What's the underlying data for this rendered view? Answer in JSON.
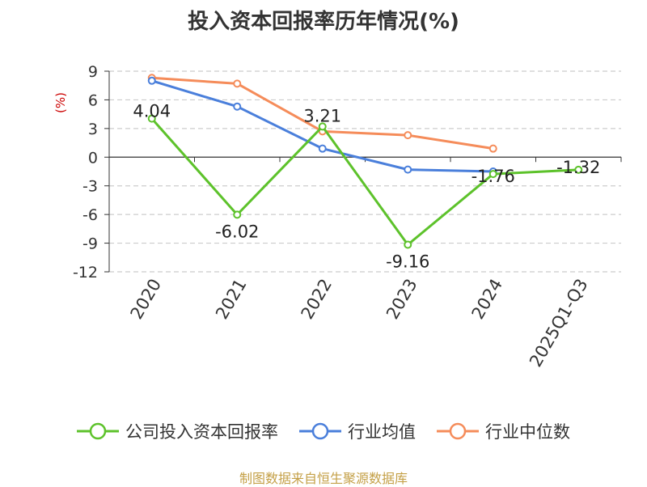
{
  "chart_data": {
    "type": "line",
    "title": "投入资本回报率历年情况(%)",
    "ylabel": "(%)",
    "categories": [
      "2020",
      "2021",
      "2022",
      "2023",
      "2024",
      "2025Q1-Q3"
    ],
    "ylim": [
      -12,
      9
    ],
    "yticks": [
      9,
      6,
      3,
      0,
      -3,
      -6,
      -9,
      -12
    ],
    "grid": true,
    "legend_position": "bottom",
    "series": [
      {
        "name": "公司投入资本回报率",
        "color": "#5dc22b",
        "values": [
          4.04,
          -6.02,
          3.21,
          -9.16,
          -1.76,
          -1.32
        ],
        "labels": [
          "4.04",
          "-6.02",
          "3.21",
          "-9.16",
          "-1.76",
          "-1.32"
        ]
      },
      {
        "name": "行业均值",
        "color": "#4a7fdb",
        "values": [
          8.0,
          5.3,
          0.9,
          -1.3,
          -1.5,
          null
        ]
      },
      {
        "name": "行业中位数",
        "color": "#f58c5a",
        "values": [
          8.3,
          7.7,
          2.7,
          2.3,
          0.9,
          null
        ]
      }
    ]
  },
  "footer": {
    "source": "制图数据来自恒生聚源数据库"
  }
}
